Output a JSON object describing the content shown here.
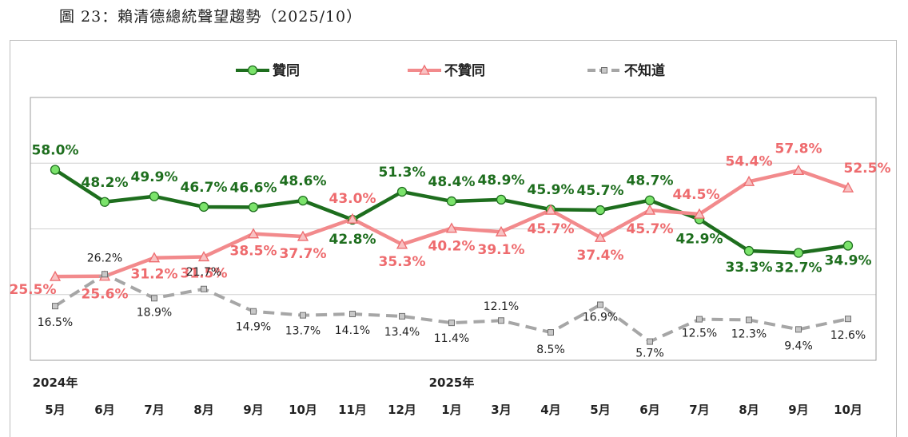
{
  "caption": "圖 23：賴清德總統聲望趨勢（2025/10）",
  "colors": {
    "approve": "#1e6e1e",
    "disapprove": "#f28a8c",
    "unknown": "#a6a6a6",
    "plot_border": "#9e9e9e"
  },
  "chart_data": {
    "type": "line",
    "title": "圖 23：賴清德總統聲望趨勢（2025/10）",
    "categories": [
      "5月",
      "6月",
      "7月",
      "8月",
      "9月",
      "10月",
      "11月",
      "12月",
      "1月",
      "3月",
      "4月",
      "5月",
      "6月",
      "7月",
      "8月",
      "9月",
      "10月"
    ],
    "year_labels": [
      {
        "index": 0,
        "label": "2024年"
      },
      {
        "index": 8,
        "label": "2025年"
      }
    ],
    "series": [
      {
        "name": "贊同",
        "marker": "circle",
        "values": [
          58.0,
          48.2,
          49.9,
          46.7,
          46.6,
          48.6,
          42.8,
          51.3,
          48.4,
          48.9,
          45.9,
          45.7,
          48.7,
          42.9,
          33.3,
          32.7,
          34.9
        ],
        "labels": [
          "58.0%",
          "48.2%",
          "49.9%",
          "46.7%",
          "46.6%",
          "48.6%",
          "42.8%",
          "51.3%",
          "48.4%",
          "48.9%",
          "45.9%",
          "45.7%",
          "48.7%",
          "42.9%",
          "33.3%",
          "32.7%",
          "34.9%"
        ]
      },
      {
        "name": "不贊同",
        "marker": "triangle",
        "values": [
          25.5,
          25.6,
          31.2,
          31.5,
          38.5,
          37.7,
          43.0,
          35.3,
          40.2,
          39.1,
          45.7,
          37.4,
          45.7,
          44.5,
          54.4,
          57.8,
          52.5
        ],
        "labels": [
          "25.5%",
          "25.6%",
          "31.2%",
          "31.5%",
          "38.5%",
          "37.7%",
          "43.0%",
          "35.3%",
          "40.2%",
          "39.1%",
          "45.7%",
          "37.4%",
          "45.7%",
          "44.5%",
          "54.4%",
          "57.8%",
          "52.5%"
        ]
      },
      {
        "name": "不知道",
        "marker": "square",
        "style": "dashed",
        "values": [
          16.5,
          26.2,
          18.9,
          21.7,
          14.9,
          13.7,
          14.1,
          13.4,
          11.4,
          12.1,
          8.5,
          16.9,
          5.7,
          12.5,
          12.3,
          9.4,
          12.6
        ],
        "labels": [
          "16.5%",
          "26.2%",
          "18.9%",
          "21.7%",
          "14.9%",
          "13.7%",
          "14.1%",
          "13.4%",
          "11.4%",
          "12.1%",
          "8.5%",
          "16.9%",
          "5.7%",
          "12.5%",
          "12.3%",
          "9.4%",
          "12.6%"
        ]
      }
    ],
    "ylim": [
      0,
      80
    ],
    "gridlines": [
      20,
      40,
      60
    ],
    "legend_position": "top"
  }
}
